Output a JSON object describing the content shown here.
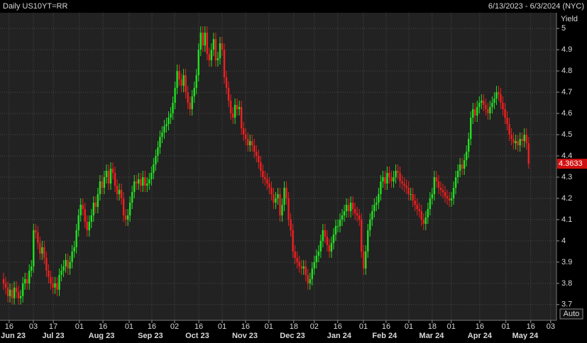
{
  "chart_data": {
    "type": "candlestick",
    "title": "Daily US10YT=RR",
    "subtitle": "6/13/2023 - 6/3/2024 (NYC)",
    "y_label": "Yield",
    "button": "Auto",
    "up_color": "#22e022",
    "down_color": "#ee2020",
    "grid": true,
    "ylim": [
      3.626,
      5.074
    ],
    "yticks": [
      3.7,
      3.8,
      3.9,
      4,
      4.1,
      4.2,
      4.3,
      4.4,
      4.5,
      4.6,
      4.7,
      4.8,
      4.9,
      5
    ],
    "xlim": [
      -1.66,
      258
    ],
    "xticks": [
      {
        "value": 2.6,
        "label": "16"
      },
      {
        "value": 13.9,
        "label": "03"
      },
      {
        "value": 23.2,
        "label": "17"
      },
      {
        "value": 35.4,
        "label": "01"
      },
      {
        "value": 46.4,
        "label": "16"
      },
      {
        "value": 58.6,
        "label": "01"
      },
      {
        "value": 69.2,
        "label": "16"
      },
      {
        "value": 79.8,
        "label": "02"
      },
      {
        "value": 91.1,
        "label": "16"
      },
      {
        "value": 102,
        "label": "01"
      },
      {
        "value": 112.9,
        "label": "16"
      },
      {
        "value": 123.8,
        "label": "01"
      },
      {
        "value": 135.4,
        "label": "18"
      },
      {
        "value": 145,
        "label": "02"
      },
      {
        "value": 155.9,
        "label": "16"
      },
      {
        "value": 167.9,
        "label": "01"
      },
      {
        "value": 178.5,
        "label": "16"
      },
      {
        "value": 189.1,
        "label": "01"
      },
      {
        "value": 200,
        "label": "18"
      },
      {
        "value": 208.9,
        "label": "01"
      },
      {
        "value": 222.2,
        "label": "16"
      },
      {
        "value": 234.4,
        "label": "01"
      },
      {
        "value": 246,
        "label": "16"
      },
      {
        "value": 255.3,
        "label": "03"
      }
    ],
    "months": [
      {
        "value": 4.5,
        "label": "Jun 23"
      },
      {
        "value": 23.2,
        "label": "Jul 23"
      },
      {
        "value": 45.7,
        "label": "Aug 23"
      },
      {
        "value": 68.5,
        "label": "Sep 23"
      },
      {
        "value": 90.4,
        "label": "Oct 23"
      },
      {
        "value": 112.6,
        "label": "Nov 23"
      },
      {
        "value": 134.8,
        "label": "Dec 23"
      },
      {
        "value": 156.6,
        "label": "Jan 24"
      },
      {
        "value": 177.8,
        "label": "Feb 24"
      },
      {
        "value": 199.7,
        "label": "Mar 24"
      },
      {
        "value": 222.2,
        "label": "Apr 24"
      },
      {
        "value": 243.4,
        "label": "May 24"
      }
    ],
    "open": [
      3.82,
      3.8,
      3.78,
      3.74,
      3.77,
      3.73,
      3.78,
      3.76,
      3.73,
      3.74,
      3.8,
      3.82,
      3.8,
      3.86,
      3.88,
      4.05,
      4.04,
      3.99,
      3.94,
      3.97,
      3.92,
      3.86,
      3.83,
      3.8,
      3.78,
      3.8,
      3.77,
      3.84,
      3.86,
      3.88,
      3.91,
      3.87,
      3.9,
      3.95,
      3.97,
      4.05,
      4.12,
      4.17,
      4.15,
      4.09,
      4.05,
      4.09,
      4.12,
      4.18,
      4.16,
      4.22,
      4.28,
      4.25,
      4.3,
      4.33,
      4.27,
      4.34,
      4.32,
      4.26,
      4.22,
      4.24,
      4.2,
      4.12,
      4.1,
      4.12,
      4.18,
      4.23,
      4.28,
      4.27,
      4.29,
      4.26,
      4.3,
      4.26,
      4.27,
      4.29,
      4.32,
      4.36,
      4.4,
      4.44,
      4.49,
      4.51,
      4.54,
      4.55,
      4.58,
      4.6,
      4.65,
      4.72,
      4.8,
      4.76,
      4.73,
      4.78,
      4.7,
      4.65,
      4.62,
      4.68,
      4.72,
      4.78,
      4.9,
      4.98,
      4.92,
      4.98,
      4.88,
      4.85,
      4.9,
      4.95,
      4.85,
      4.86,
      4.93,
      4.9,
      4.77,
      4.72,
      4.66,
      4.6,
      4.58,
      4.64,
      4.62,
      4.63,
      4.53,
      4.5,
      4.48,
      4.45,
      4.47,
      4.45,
      4.42,
      4.4,
      4.37,
      4.33,
      4.3,
      4.29,
      4.27,
      4.25,
      4.22,
      4.18,
      4.2,
      4.22,
      4.12,
      4.17,
      4.25,
      4.2,
      4.1,
      4.05,
      3.95,
      3.92,
      3.9,
      3.88,
      3.87,
      3.88,
      3.84,
      3.8,
      3.82,
      3.87,
      3.9,
      3.93,
      3.95,
      4.0,
      4.05,
      4.02,
      3.98,
      3.95,
      3.99,
      4.03,
      4.07,
      4.07,
      4.1,
      4.12,
      4.14,
      4.17,
      4.14,
      4.18,
      4.15,
      4.13,
      4.12,
      4.1,
      3.95,
      3.87,
      3.95,
      4.05,
      4.1,
      4.14,
      4.17,
      4.18,
      4.22,
      4.28,
      4.3,
      4.27,
      4.32,
      4.3,
      4.28,
      4.3,
      4.33,
      4.32,
      4.28,
      4.27,
      4.26,
      4.25,
      4.22,
      4.22,
      4.19,
      4.17,
      4.15,
      4.14,
      4.1,
      4.08,
      4.11,
      4.15,
      4.2,
      4.22,
      4.3,
      4.28,
      4.25,
      4.24,
      4.23,
      4.21,
      4.2,
      4.19,
      4.2,
      4.25,
      4.3,
      4.33,
      4.36,
      4.34,
      4.38,
      4.42,
      4.48,
      4.58,
      4.62,
      4.59,
      4.63,
      4.65,
      4.66,
      4.64,
      4.62,
      4.6,
      4.63,
      4.65,
      4.67,
      4.7,
      4.69,
      4.65,
      4.62,
      4.58,
      4.55,
      4.5,
      4.48,
      4.46,
      4.47,
      4.45,
      4.48,
      4.47,
      4.5,
      4.46
    ],
    "high": [
      3.85,
      3.83,
      3.81,
      3.8,
      3.8,
      3.81,
      3.81,
      3.79,
      3.77,
      3.83,
      3.85,
      3.85,
      3.89,
      3.91,
      4.08,
      4.08,
      4.07,
      4.02,
      4.0,
      4.0,
      3.95,
      3.89,
      3.86,
      3.83,
      3.83,
      3.83,
      3.87,
      3.89,
      3.91,
      3.94,
      3.94,
      3.93,
      3.98,
      4.0,
      4.08,
      4.15,
      4.2,
      4.2,
      4.18,
      4.12,
      4.12,
      4.15,
      4.21,
      4.21,
      4.25,
      4.31,
      4.31,
      4.33,
      4.36,
      4.36,
      4.37,
      4.37,
      4.35,
      4.29,
      4.27,
      4.27,
      4.23,
      4.15,
      4.15,
      4.21,
      4.26,
      4.31,
      4.31,
      4.32,
      4.32,
      4.33,
      4.33,
      4.3,
      4.32,
      4.35,
      4.39,
      4.43,
      4.47,
      4.52,
      4.54,
      4.57,
      4.58,
      4.61,
      4.63,
      4.68,
      4.75,
      4.83,
      4.83,
      4.79,
      4.81,
      4.81,
      4.73,
      4.68,
      4.71,
      4.75,
      4.81,
      4.93,
      5.01,
      5.01,
      5.01,
      5.01,
      4.91,
      4.93,
      4.98,
      4.98,
      4.89,
      4.96,
      4.96,
      4.93,
      4.8,
      4.75,
      4.69,
      4.63,
      4.67,
      4.67,
      4.66,
      4.66,
      4.56,
      4.53,
      4.51,
      4.5,
      4.5,
      4.48,
      4.45,
      4.43,
      4.4,
      4.36,
      4.33,
      4.32,
      4.3,
      4.28,
      4.25,
      4.23,
      4.25,
      4.25,
      4.2,
      4.28,
      4.28,
      4.23,
      4.13,
      4.08,
      3.98,
      3.95,
      3.93,
      3.91,
      3.91,
      3.91,
      3.87,
      3.85,
      3.9,
      3.93,
      3.96,
      3.98,
      4.03,
      4.08,
      4.08,
      4.05,
      4.01,
      4.02,
      4.06,
      4.1,
      4.1,
      4.13,
      4.15,
      4.17,
      4.2,
      4.2,
      4.21,
      4.21,
      4.18,
      4.16,
      4.15,
      4.13,
      3.98,
      3.98,
      4.08,
      4.13,
      4.17,
      4.2,
      4.21,
      4.25,
      4.31,
      4.33,
      4.33,
      4.35,
      4.35,
      4.33,
      4.33,
      4.36,
      4.36,
      4.35,
      4.31,
      4.3,
      4.29,
      4.28,
      4.25,
      4.25,
      4.22,
      4.2,
      4.18,
      4.17,
      4.13,
      4.14,
      4.18,
      4.23,
      4.25,
      4.33,
      4.33,
      4.31,
      4.28,
      4.27,
      4.26,
      4.24,
      4.23,
      4.23,
      4.28,
      4.33,
      4.36,
      4.39,
      4.39,
      4.41,
      4.45,
      4.51,
      4.61,
      4.65,
      4.65,
      4.66,
      4.68,
      4.69,
      4.69,
      4.67,
      4.65,
      4.66,
      4.68,
      4.7,
      4.73,
      4.73,
      4.72,
      4.68,
      4.65,
      4.61,
      4.58,
      4.53,
      4.51,
      4.5,
      4.5,
      4.51,
      4.51,
      4.53,
      4.53,
      4.49
    ],
    "low": [
      3.77,
      3.75,
      3.71,
      3.71,
      3.7,
      3.7,
      3.73,
      3.7,
      3.7,
      3.71,
      3.77,
      3.77,
      3.77,
      3.83,
      3.85,
      4.01,
      3.96,
      3.91,
      3.91,
      3.89,
      3.83,
      3.8,
      3.77,
      3.75,
      3.75,
      3.74,
      3.74,
      3.81,
      3.83,
      3.85,
      3.84,
      3.84,
      3.87,
      3.92,
      3.94,
      4.02,
      4.09,
      4.12,
      4.06,
      4.02,
      4.02,
      4.06,
      4.09,
      4.13,
      4.13,
      4.19,
      4.22,
      4.22,
      4.27,
      4.24,
      4.24,
      4.29,
      4.23,
      4.19,
      4.19,
      4.17,
      4.09,
      4.07,
      4.07,
      4.09,
      4.15,
      4.2,
      4.24,
      4.24,
      4.23,
      4.23,
      4.23,
      4.23,
      4.24,
      4.26,
      4.29,
      4.33,
      4.37,
      4.41,
      4.46,
      4.48,
      4.51,
      4.52,
      4.55,
      4.57,
      4.62,
      4.69,
      4.73,
      4.7,
      4.7,
      4.67,
      4.62,
      4.59,
      4.59,
      4.65,
      4.69,
      4.75,
      4.87,
      4.89,
      4.89,
      4.85,
      4.82,
      4.82,
      4.87,
      4.82,
      4.82,
      4.83,
      4.87,
      4.74,
      4.69,
      4.63,
      4.57,
      4.55,
      4.55,
      4.59,
      4.59,
      4.5,
      4.47,
      4.45,
      4.42,
      4.42,
      4.42,
      4.39,
      4.37,
      4.34,
      4.3,
      4.27,
      4.26,
      4.24,
      4.22,
      4.19,
      4.15,
      4.15,
      4.17,
      4.09,
      4.09,
      4.14,
      4.17,
      4.07,
      4.02,
      3.92,
      3.89,
      3.87,
      3.85,
      3.84,
      3.84,
      3.81,
      3.77,
      3.77,
      3.79,
      3.84,
      3.87,
      3.9,
      3.92,
      3.97,
      3.99,
      3.95,
      3.92,
      3.92,
      3.96,
      4.0,
      4.04,
      4.04,
      4.07,
      4.09,
      4.11,
      4.11,
      4.11,
      4.12,
      4.1,
      4.09,
      4.07,
      3.92,
      3.84,
      3.84,
      3.92,
      4.02,
      4.07,
      4.11,
      4.14,
      4.15,
      4.19,
      4.25,
      4.24,
      4.24,
      4.27,
      4.25,
      4.25,
      4.27,
      4.29,
      4.25,
      4.24,
      4.23,
      4.22,
      4.19,
      4.19,
      4.16,
      4.14,
      4.12,
      4.11,
      4.07,
      4.05,
      4.05,
      4.08,
      4.12,
      4.17,
      4.19,
      4.25,
      4.22,
      4.21,
      4.2,
      4.18,
      4.17,
      4.16,
      4.16,
      4.17,
      4.22,
      4.27,
      4.3,
      4.31,
      4.31,
      4.35,
      4.39,
      4.45,
      4.55,
      4.56,
      4.56,
      4.6,
      4.62,
      4.61,
      4.59,
      4.57,
      4.57,
      4.6,
      4.62,
      4.64,
      4.66,
      4.62,
      4.59,
      4.55,
      4.52,
      4.47,
      4.45,
      4.43,
      4.43,
      4.42,
      4.42,
      4.44,
      4.44,
      4.43,
      4.34
    ],
    "close": [
      3.8,
      3.78,
      3.74,
      3.77,
      3.73,
      3.78,
      3.76,
      3.73,
      3.74,
      3.8,
      3.82,
      3.8,
      3.86,
      3.88,
      4.05,
      4.04,
      3.99,
      3.94,
      3.97,
      3.92,
      3.86,
      3.83,
      3.8,
      3.78,
      3.8,
      3.77,
      3.84,
      3.86,
      3.88,
      3.91,
      3.87,
      3.9,
      3.95,
      3.97,
      4.05,
      4.12,
      4.17,
      4.15,
      4.09,
      4.05,
      4.09,
      4.12,
      4.18,
      4.16,
      4.22,
      4.28,
      4.25,
      4.3,
      4.33,
      4.27,
      4.34,
      4.32,
      4.26,
      4.22,
      4.24,
      4.2,
      4.12,
      4.1,
      4.12,
      4.18,
      4.23,
      4.28,
      4.27,
      4.29,
      4.26,
      4.3,
      4.26,
      4.27,
      4.29,
      4.32,
      4.36,
      4.4,
      4.44,
      4.49,
      4.51,
      4.54,
      4.55,
      4.58,
      4.6,
      4.65,
      4.72,
      4.8,
      4.76,
      4.73,
      4.78,
      4.7,
      4.65,
      4.62,
      4.68,
      4.72,
      4.78,
      4.9,
      4.98,
      4.92,
      4.98,
      4.88,
      4.85,
      4.9,
      4.95,
      4.85,
      4.86,
      4.93,
      4.9,
      4.77,
      4.72,
      4.66,
      4.6,
      4.58,
      4.64,
      4.62,
      4.63,
      4.53,
      4.5,
      4.48,
      4.45,
      4.47,
      4.45,
      4.42,
      4.4,
      4.37,
      4.33,
      4.3,
      4.29,
      4.27,
      4.25,
      4.22,
      4.18,
      4.2,
      4.22,
      4.12,
      4.17,
      4.25,
      4.2,
      4.1,
      4.05,
      3.95,
      3.92,
      3.9,
      3.88,
      3.87,
      3.88,
      3.84,
      3.8,
      3.82,
      3.87,
      3.9,
      3.93,
      3.95,
      4.0,
      4.05,
      4.02,
      3.98,
      3.95,
      3.99,
      4.03,
      4.07,
      4.07,
      4.1,
      4.12,
      4.14,
      4.17,
      4.14,
      4.18,
      4.15,
      4.13,
      4.12,
      4.1,
      3.95,
      3.87,
      3.95,
      4.05,
      4.1,
      4.14,
      4.17,
      4.18,
      4.22,
      4.28,
      4.3,
      4.27,
      4.32,
      4.3,
      4.28,
      4.3,
      4.33,
      4.32,
      4.28,
      4.27,
      4.26,
      4.25,
      4.22,
      4.22,
      4.19,
      4.17,
      4.15,
      4.14,
      4.1,
      4.08,
      4.11,
      4.15,
      4.2,
      4.22,
      4.3,
      4.28,
      4.25,
      4.24,
      4.23,
      4.21,
      4.2,
      4.19,
      4.2,
      4.25,
      4.3,
      4.33,
      4.36,
      4.34,
      4.38,
      4.42,
      4.48,
      4.58,
      4.62,
      4.59,
      4.63,
      4.65,
      4.66,
      4.64,
      4.62,
      4.6,
      4.63,
      4.65,
      4.67,
      4.7,
      4.69,
      4.65,
      4.62,
      4.58,
      4.55,
      4.5,
      4.48,
      4.46,
      4.47,
      4.45,
      4.48,
      4.47,
      4.5,
      4.46,
      4.3633
    ]
  }
}
